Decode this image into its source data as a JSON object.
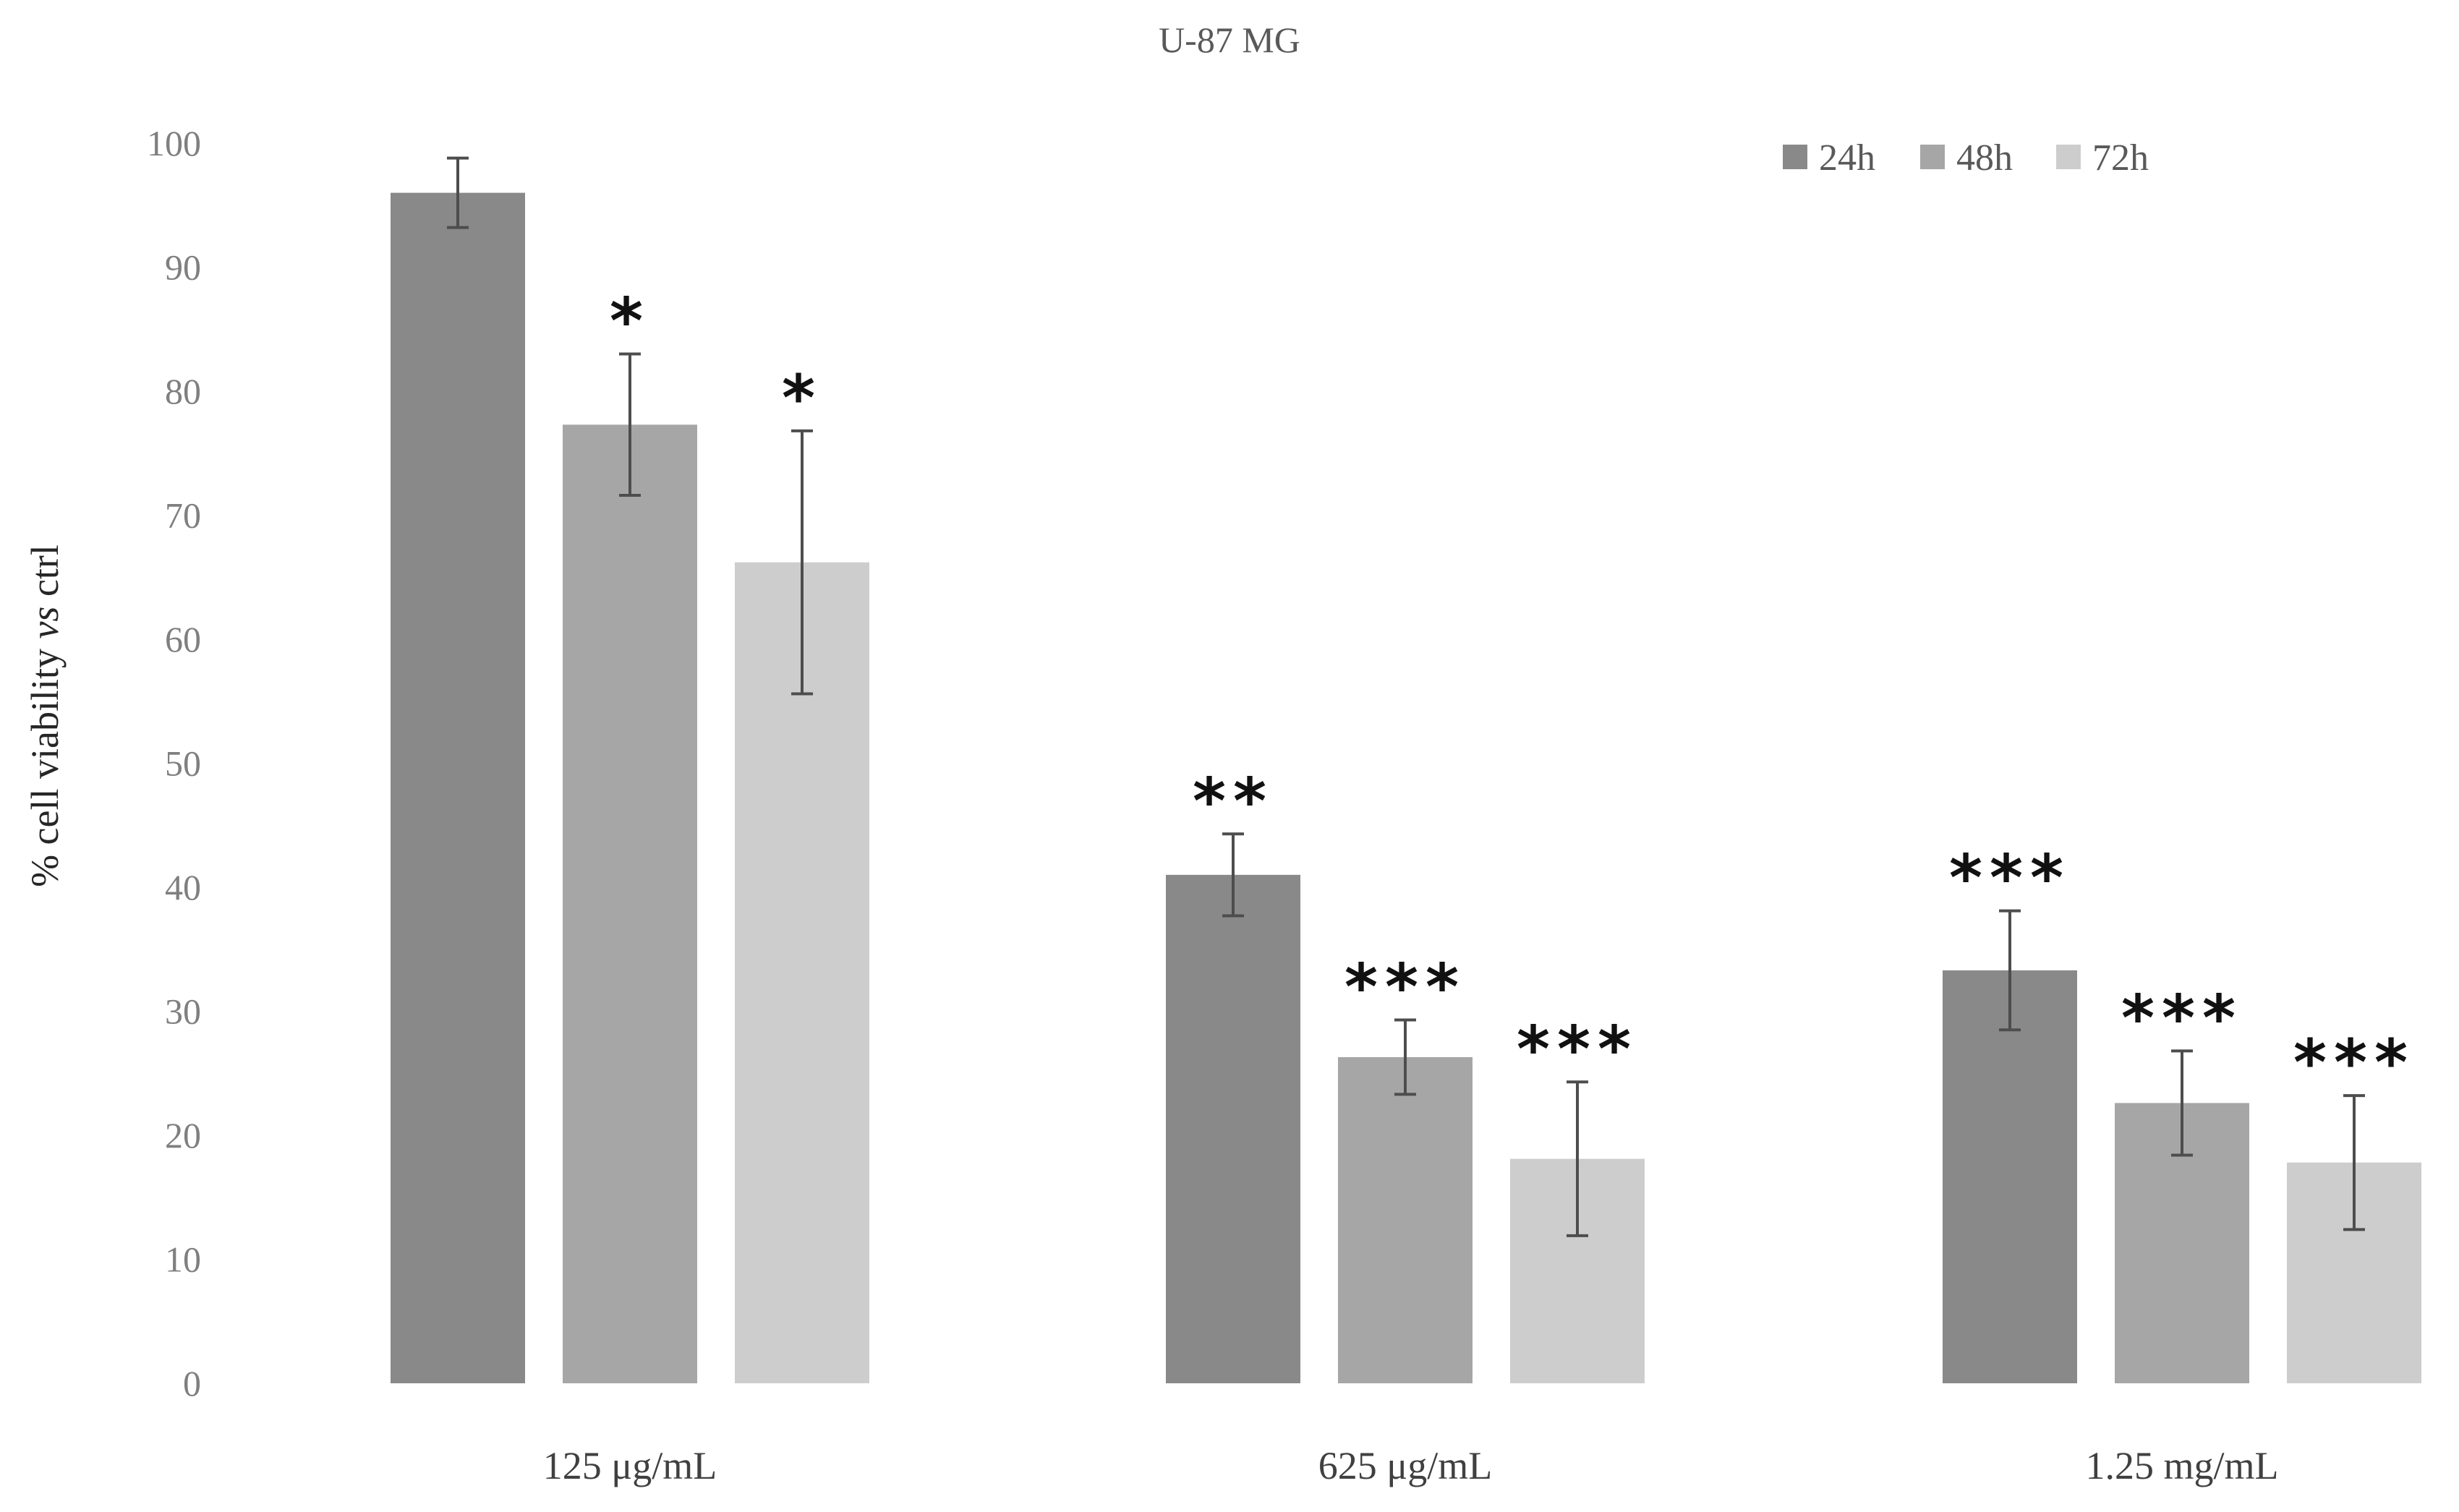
{
  "chart_data": {
    "type": "bar",
    "title": "U-87 MG",
    "xlabel": "",
    "ylabel_prefix": "% cell viability ",
    "ylabel_italic": "vs",
    "ylabel_suffix": " ctrl",
    "ylim": [
      0,
      100
    ],
    "yticks": [
      0,
      10,
      20,
      30,
      40,
      50,
      60,
      70,
      80,
      90,
      100
    ],
    "grid": false,
    "legend_position": "top-right",
    "categories": [
      "125 μg/mL",
      "625 μg/mL",
      "1.25 mg/mL"
    ],
    "series": [
      {
        "name": "24h",
        "color": "#898989",
        "values": [
          96,
          41,
          33.3
        ],
        "errors": [
          2.8,
          3.3,
          4.8
        ],
        "significance": [
          "",
          "**",
          "***"
        ]
      },
      {
        "name": "48h",
        "color": "#a6a6a6",
        "values": [
          77.3,
          26.3,
          22.6
        ],
        "errors": [
          5.7,
          3.0,
          4.2
        ],
        "significance": [
          "*",
          "***",
          "***"
        ]
      },
      {
        "name": "72h",
        "color": "#cdcdcd",
        "values": [
          66.2,
          18.1,
          17.8
        ],
        "errors": [
          10.6,
          6.2,
          5.4
        ],
        "significance": [
          "*",
          "***",
          "***"
        ]
      }
    ]
  }
}
